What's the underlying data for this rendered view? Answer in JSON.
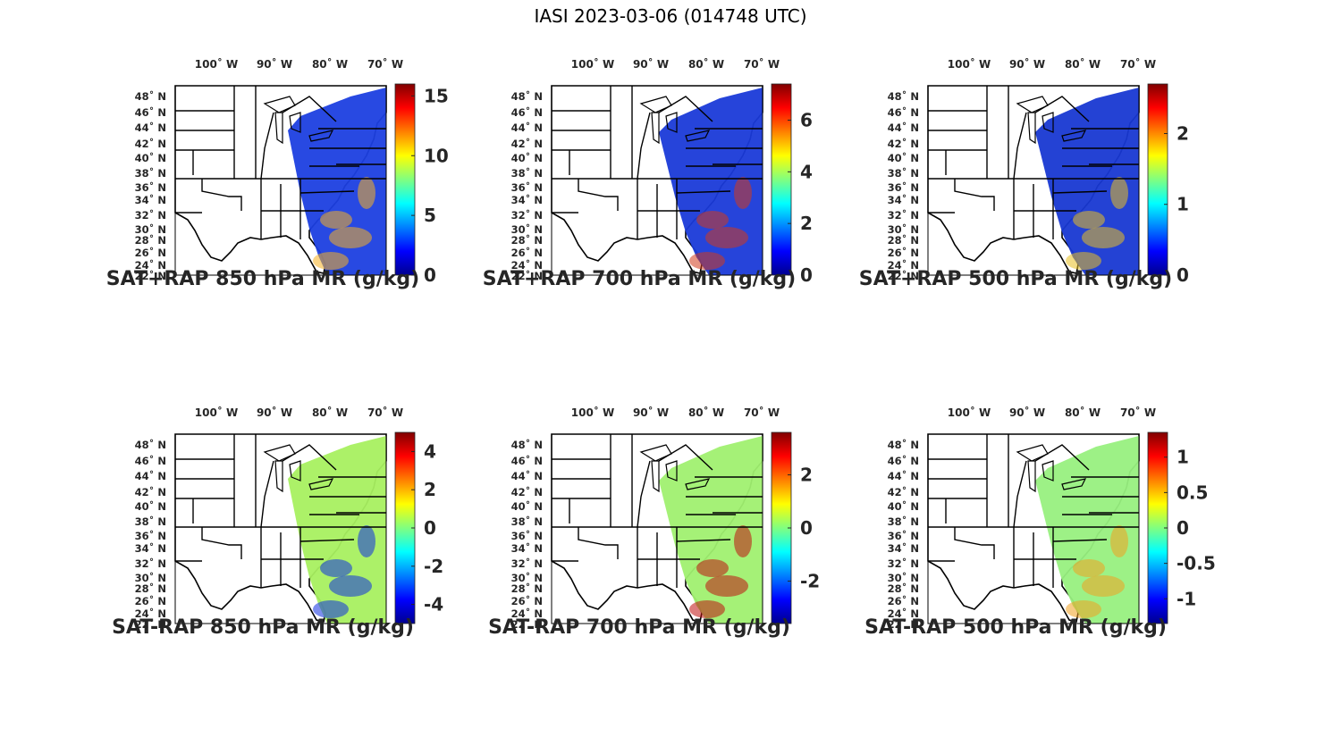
{
  "figure_title": "IASI 2023-03-06 (014748 UTC)",
  "lon_ticks": [
    {
      "deg": "100",
      "hemi": "W"
    },
    {
      "deg": "90",
      "hemi": "W"
    },
    {
      "deg": "80",
      "hemi": "W"
    },
    {
      "deg": "70",
      "hemi": "W"
    }
  ],
  "lat_ticks": [
    {
      "deg": "48",
      "hemi": "N"
    },
    {
      "deg": "46",
      "hemi": "N"
    },
    {
      "deg": "44",
      "hemi": "N"
    },
    {
      "deg": "42",
      "hemi": "N"
    },
    {
      "deg": "40",
      "hemi": "N"
    },
    {
      "deg": "38",
      "hemi": "N"
    },
    {
      "deg": "36",
      "hemi": "N"
    },
    {
      "deg": "34",
      "hemi": "N"
    },
    {
      "deg": "32",
      "hemi": "N"
    },
    {
      "deg": "30",
      "hemi": "N"
    },
    {
      "deg": "28",
      "hemi": "N"
    },
    {
      "deg": "26",
      "hemi": "N"
    },
    {
      "deg": "24",
      "hemi": "N"
    },
    {
      "deg": "22",
      "hemi": "N"
    }
  ],
  "colormap": [
    "#00008f",
    "#0000ff",
    "#0080ff",
    "#00ffff",
    "#80ff80",
    "#ffff00",
    "#ff8000",
    "#ff0000",
    "#800000"
  ],
  "map_colors": {
    "land_fill": "#ffffff",
    "border": "#000000"
  },
  "panels": [
    {
      "title": "SAT+RAP 850 hPa MR (g/kg)",
      "range": [
        0,
        16
      ],
      "ticks": [
        {
          "value": 0,
          "label": "0"
        },
        {
          "value": 5,
          "label": "5"
        },
        {
          "value": 10,
          "label": "10"
        },
        {
          "value": 15,
          "label": "15"
        }
      ],
      "base_color": "#1c3fe0",
      "fill_style": "swath-wide",
      "accent_color": "#f5b020"
    },
    {
      "title": "SAT+RAP 700 hPa MR (g/kg)",
      "range": [
        0,
        7.4
      ],
      "ticks": [
        {
          "value": 0,
          "label": "0"
        },
        {
          "value": 2,
          "label": "2"
        },
        {
          "value": 4,
          "label": "4"
        },
        {
          "value": 6,
          "label": "6"
        }
      ],
      "base_color": "#1a3ad8",
      "fill_style": "swath-narrow",
      "accent_color": "#d23a1c"
    },
    {
      "title": "SAT+RAP 500 hPa MR (g/kg)",
      "range": [
        0,
        2.7
      ],
      "ticks": [
        {
          "value": 0,
          "label": "0"
        },
        {
          "value": 1,
          "label": "1"
        },
        {
          "value": 2,
          "label": "2"
        }
      ],
      "base_color": "#1838d2",
      "fill_style": "swath-narrow",
      "accent_color": "#e8c020"
    },
    {
      "title": "SAT-RAP 850 hPa MR (g/kg)",
      "range": [
        -5,
        5
      ],
      "ticks": [
        {
          "value": -4,
          "label": "-4"
        },
        {
          "value": -2,
          "label": "-2"
        },
        {
          "value": 0,
          "label": "0"
        },
        {
          "value": 2,
          "label": "2"
        },
        {
          "value": 4,
          "label": "4"
        }
      ],
      "base_color": "#a8f060",
      "fill_style": "swath-wide",
      "accent_color": "#1030e0"
    },
    {
      "title": "SAT-RAP 700 hPa MR (g/kg)",
      "range": [
        -3.6,
        3.6
      ],
      "ticks": [
        {
          "value": -2,
          "label": "-2"
        },
        {
          "value": 0,
          "label": "0"
        },
        {
          "value": 2,
          "label": "2"
        }
      ],
      "base_color": "#a0f070",
      "fill_style": "swath-narrow",
      "accent_color": "#c01010"
    },
    {
      "title": "SAT-RAP 500 hPa MR (g/kg)",
      "range": [
        -1.35,
        1.35
      ],
      "ticks": [
        {
          "value": -1,
          "label": "-1"
        },
        {
          "value": -0.5,
          "label": "-0.5"
        },
        {
          "value": 0,
          "label": "0"
        },
        {
          "value": 0.5,
          "label": "0.5"
        },
        {
          "value": 1,
          "label": "1"
        }
      ],
      "base_color": "#98f080",
      "fill_style": "swath-narrow",
      "accent_color": "#f0a020"
    }
  ]
}
